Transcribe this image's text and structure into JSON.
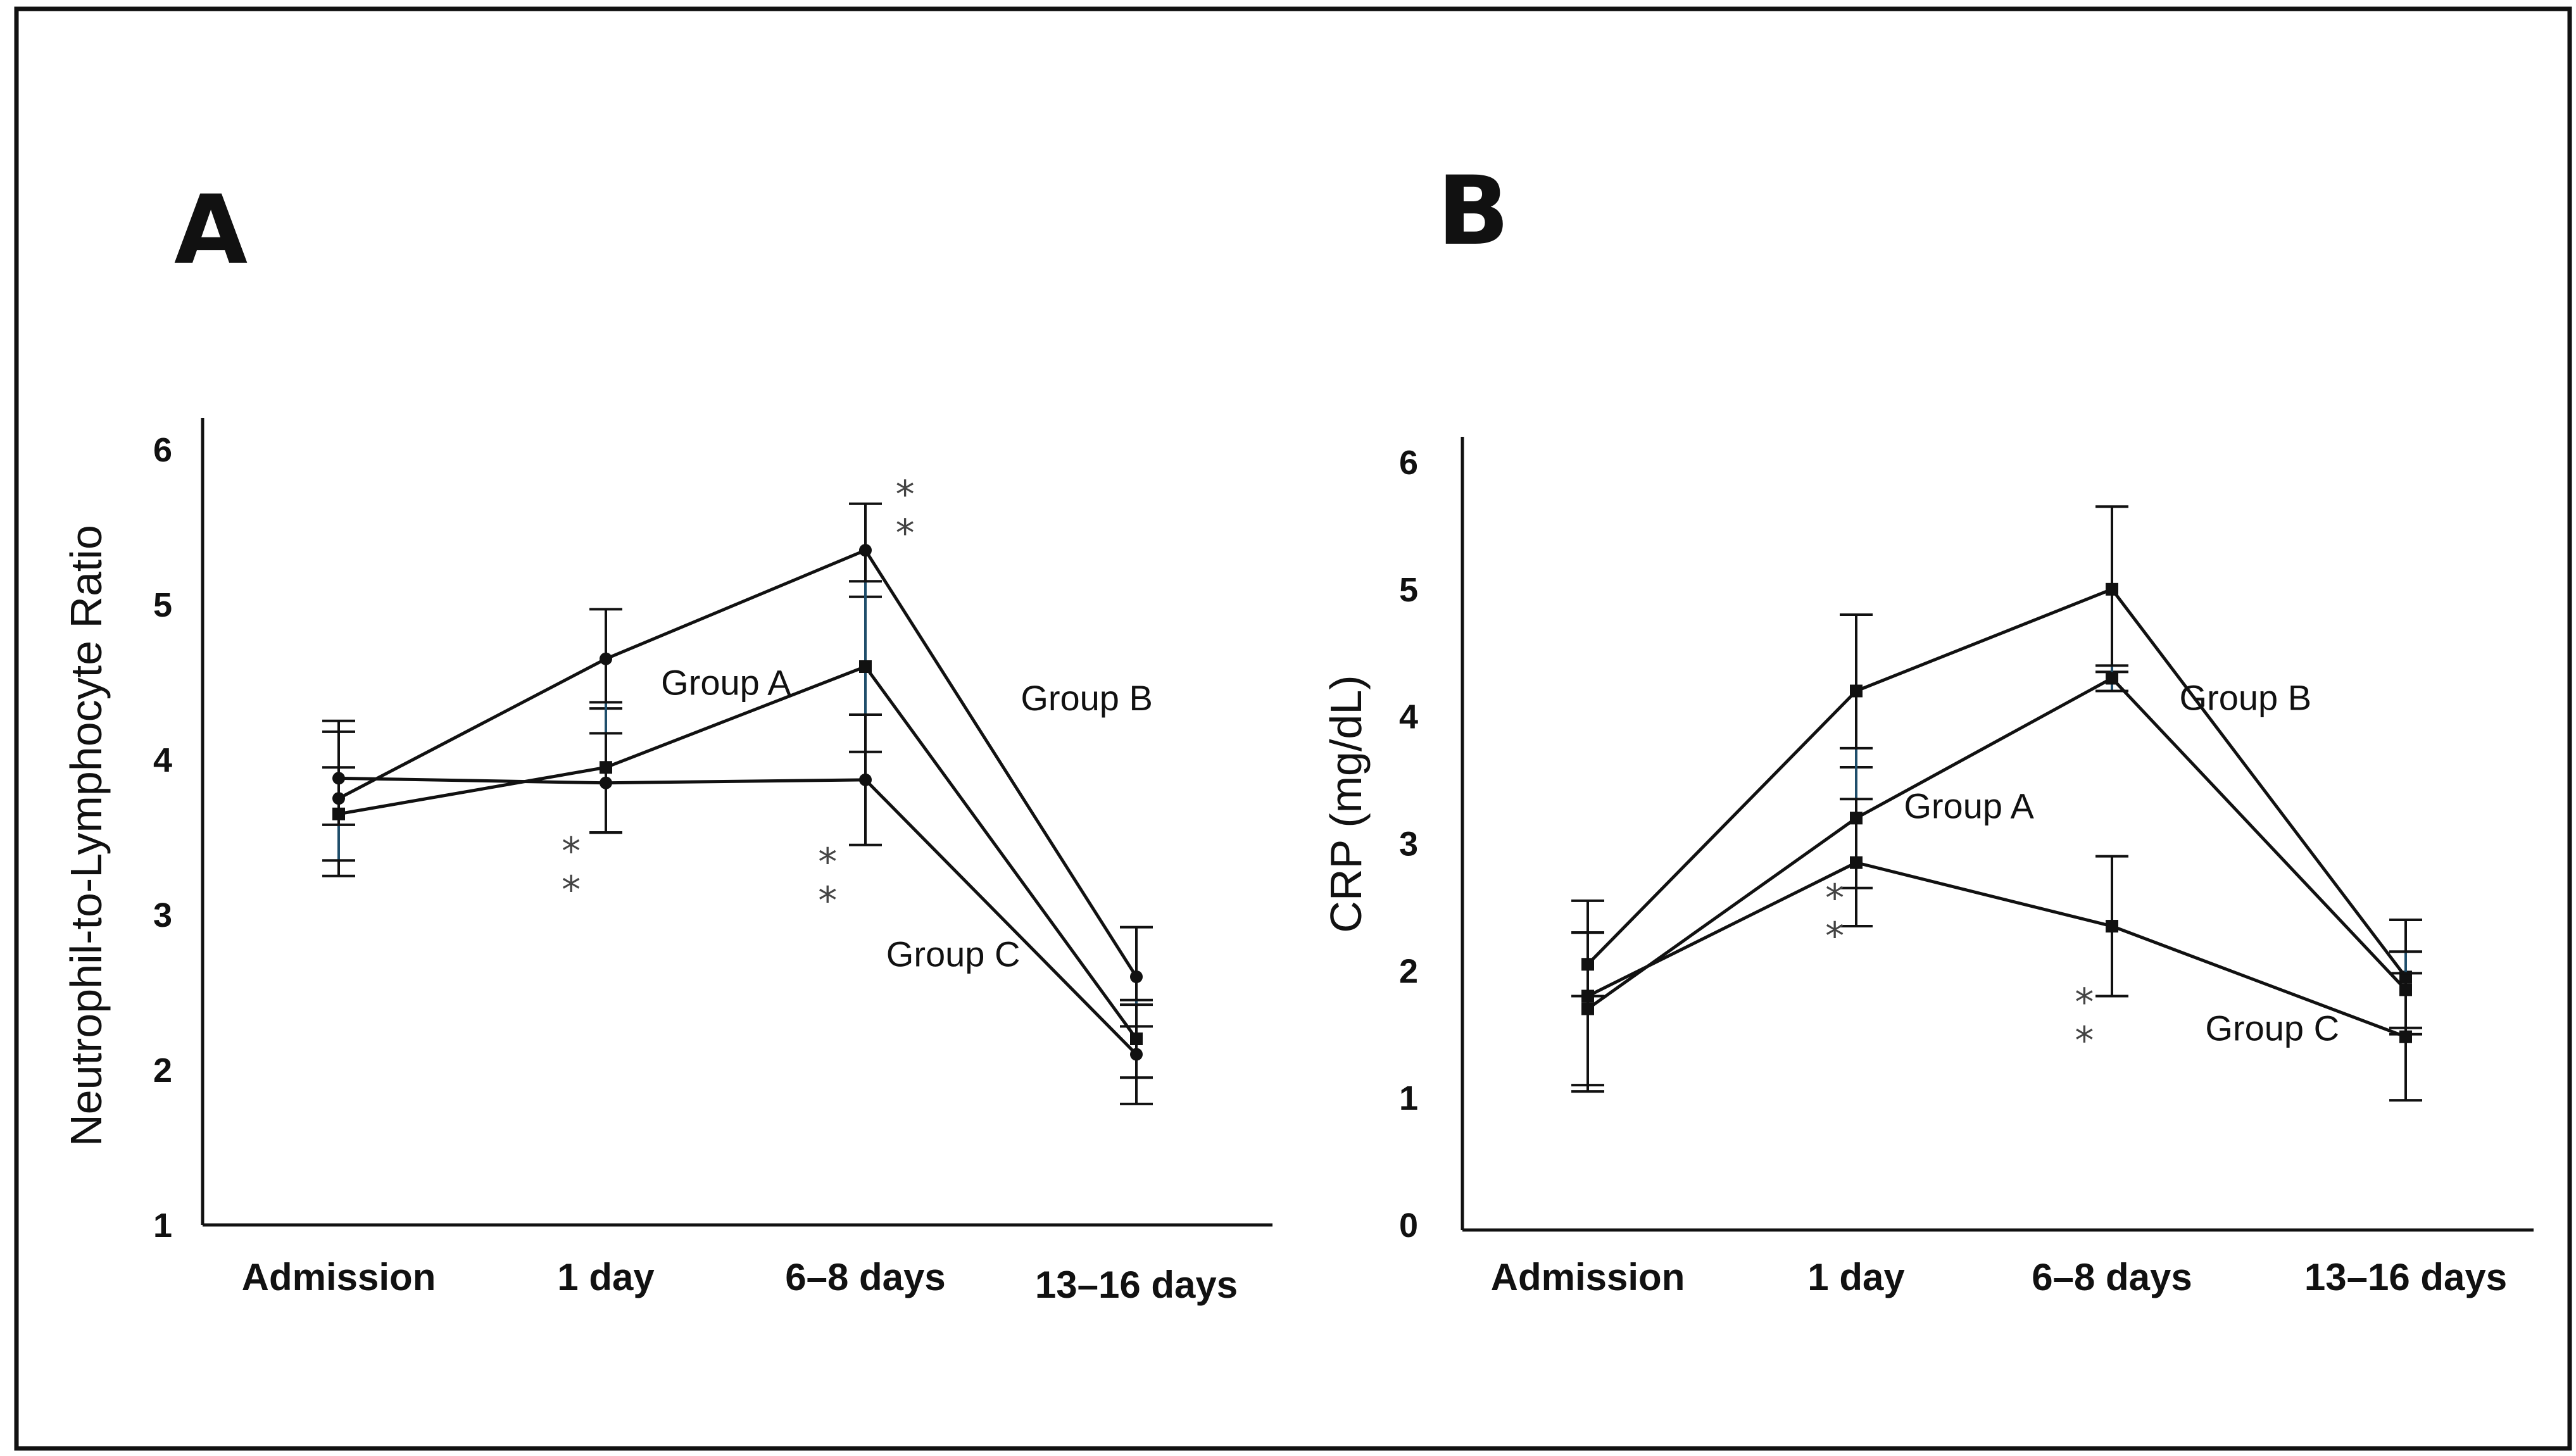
{
  "chart_data": [
    {
      "type": "line",
      "panel_label": "A",
      "ylabel": "Neutrophil-to-Lymphocyte Ratio",
      "xlabel": "",
      "ylim": [
        1,
        6
      ],
      "yticks": [
        "1",
        "2",
        "3",
        "4",
        "5",
        "6"
      ],
      "categories": [
        "Admission",
        "1 day",
        "6–8 days",
        "13–16 days"
      ],
      "series": [
        {
          "name": "Group A",
          "values": [
            3.75,
            4.65,
            5.35,
            2.6
          ],
          "errors": [
            0.5,
            0.32,
            0.3,
            0.32
          ],
          "marker": "circle",
          "color": "#111111",
          "error_color": "#111111"
        },
        {
          "name": "Group B",
          "values": [
            3.65,
            3.95,
            4.6,
            2.2
          ],
          "errors": [
            0.3,
            0.42,
            0.55,
            0.25
          ],
          "marker": "square",
          "color": "#111111",
          "error_color": "#1f4e6b"
        },
        {
          "name": "Group C",
          "values": [
            3.88,
            3.85,
            3.87,
            2.1
          ],
          "errors": [
            0.3,
            0.32,
            0.42,
            0.32
          ],
          "marker": "circle",
          "color": "#111111",
          "error_color": "#111111"
        }
      ],
      "annotations": [
        {
          "text": "Group A",
          "x": 1.45,
          "y": 4.5
        },
        {
          "text": "Group B",
          "x": 2.8,
          "y": 4.4
        },
        {
          "text": "Group C",
          "x": 2.3,
          "y": 2.75
        },
        {
          "text": "*",
          "x": 2.12,
          "y": 5.75
        },
        {
          "text": "*",
          "x": 2.12,
          "y": 5.5
        },
        {
          "text": "*",
          "x": 0.87,
          "y": 3.45
        },
        {
          "text": "*",
          "x": 0.87,
          "y": 3.2
        },
        {
          "text": "*",
          "x": 1.83,
          "y": 3.38
        },
        {
          "text": "*",
          "x": 1.83,
          "y": 3.13
        }
      ]
    },
    {
      "type": "line",
      "panel_label": "B",
      "ylabel": "CRP (mg/dL)",
      "xlabel": "",
      "ylim": [
        0,
        6
      ],
      "yticks": [
        "0",
        "1",
        "2",
        "3",
        "4",
        "5",
        "6"
      ],
      "categories": [
        "Admission",
        "1 day",
        "6–8 days",
        "13–16 days"
      ],
      "series": [
        {
          "name": "Group B",
          "values": [
            2.05,
            4.2,
            5.0,
            1.95
          ],
          "errors": [
            0.25,
            0.6,
            0.65,
            0.45
          ],
          "marker": "square",
          "color": "#111111",
          "error_color": "#111111"
        },
        {
          "name": "Group A",
          "values": [
            1.7,
            3.2,
            4.3,
            1.85
          ],
          "errors": [
            0.6,
            0.55,
            0.1,
            0.3
          ],
          "marker": "square",
          "color": "#111111",
          "error_color": "#1f4e6b"
        },
        {
          "name": "Group C",
          "values": [
            1.8,
            2.85,
            2.35,
            1.48
          ],
          "errors": [
            0.75,
            0.5,
            0.55,
            0.5
          ],
          "marker": "square",
          "color": "#111111",
          "error_color": "#111111"
        }
      ],
      "annotations": [
        {
          "text": "Group B",
          "x": 2.45,
          "y": 4.15
        },
        {
          "text": "Group A",
          "x": 1.42,
          "y": 3.3
        },
        {
          "text": "Group C",
          "x": 2.55,
          "y": 1.55
        },
        {
          "text": "*",
          "x": 0.92,
          "y": 2.62
        },
        {
          "text": "*",
          "x": 0.92,
          "y": 2.32
        },
        {
          "text": "*",
          "x": 1.85,
          "y": 1.8
        },
        {
          "text": "*",
          "x": 1.85,
          "y": 1.5
        }
      ]
    }
  ]
}
